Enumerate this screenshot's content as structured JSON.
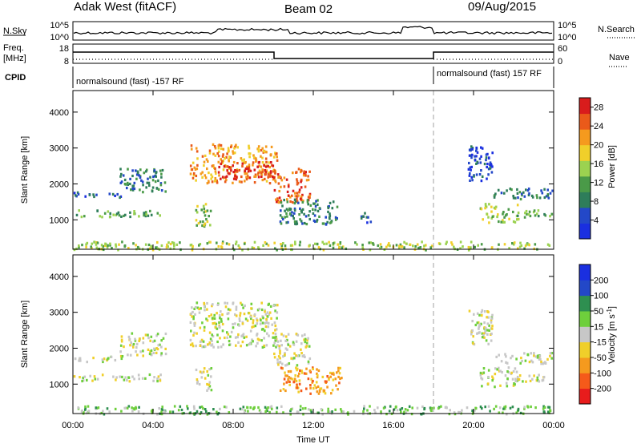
{
  "header": {
    "station": "Adak West (fitACF)",
    "beam": "Beam 02",
    "date": "09/Aug/2015"
  },
  "left_labels": {
    "nsky": "N.Sky",
    "freq_line1": "Freq.",
    "freq_line2": "[MHz]",
    "cpid": "CPID"
  },
  "right_labels": {
    "nsearch": "N.Search",
    "nave": "Nave"
  },
  "panel_ticks": {
    "noise_left": [
      "10^5",
      "10^0"
    ],
    "noise_right": [
      "10^5",
      "10^0"
    ],
    "freq_left": [
      "18",
      "8"
    ],
    "nave_right": [
      "60",
      "0"
    ]
  },
  "cpid_segments": [
    {
      "text": "normalsound (fast) -157 RF",
      "start_hour": 0
    },
    {
      "text": "normalsound (fast) 157 RF",
      "start_hour": 18
    }
  ],
  "colors": {
    "power": [
      "#1a2fe0",
      "#2348c8",
      "#2e7d5a",
      "#4a9a48",
      "#9bd250",
      "#f0cf2a",
      "#f59a1e",
      "#ea5a1a",
      "#d91c1c"
    ],
    "velocity": [
      "#e81c1c",
      "#f55a1a",
      "#f59a1e",
      "#f0cf2a",
      "#c7c7c7",
      "#6ecf3c",
      "#2e8f50",
      "#2348c8",
      "#1a2fe0"
    ],
    "ground_scatter": "#b3b3b3",
    "dashed_marker": "#a0a0a0"
  },
  "chart_data": [
    {
      "type": "heatmap",
      "name_label": "Power panel",
      "ylabel": "Slant Range [km]",
      "xlabel": "Time UT",
      "x_ticks": [
        "00:00",
        "04:00",
        "08:00",
        "12:00",
        "16:00",
        "20:00",
        "00:00"
      ],
      "xlim_hours": [
        0,
        24
      ],
      "y_ticks": [
        1000,
        2000,
        3000,
        4000
      ],
      "ylim": [
        180,
        4600
      ],
      "colorbar": {
        "label": "Power [dB]",
        "ticks": [
          4,
          8,
          12,
          16,
          20,
          24,
          28
        ],
        "range": [
          0,
          30
        ]
      },
      "mode_change_hour": 18,
      "regions": [
        {
          "t0": 0.0,
          "t1": 4.5,
          "r0": 1100,
          "r1": 1300,
          "level": 3
        },
        {
          "t0": 0.0,
          "t1": 2.5,
          "r0": 1650,
          "r1": 1800,
          "level": 1
        },
        {
          "t0": 2.3,
          "t1": 4.6,
          "r0": 1800,
          "r1": 2450,
          "level": 2
        },
        {
          "t0": 5.8,
          "t1": 10.2,
          "r0": 2050,
          "r1": 3150,
          "level": 6
        },
        {
          "t0": 7.2,
          "t1": 10.0,
          "r0": 2150,
          "r1": 2650,
          "level": 8
        },
        {
          "t0": 10.0,
          "t1": 11.8,
          "r0": 1500,
          "r1": 2450,
          "level": 7
        },
        {
          "t0": 6.1,
          "t1": 6.9,
          "r0": 850,
          "r1": 1500,
          "level": 4
        },
        {
          "t0": 10.3,
          "t1": 13.2,
          "r0": 900,
          "r1": 1600,
          "level": 2
        },
        {
          "t0": 14.3,
          "t1": 14.9,
          "r0": 950,
          "r1": 1250,
          "level": 1
        },
        {
          "t0": 19.7,
          "t1": 20.9,
          "r0": 2100,
          "r1": 3100,
          "level": 1
        },
        {
          "t0": 20.9,
          "t1": 23.9,
          "r0": 1600,
          "r1": 1900,
          "level": 2
        },
        {
          "t0": 20.3,
          "t1": 22.2,
          "r0": 950,
          "r1": 1500,
          "level": 4
        },
        {
          "t0": 22.0,
          "t1": 23.9,
          "r0": 1100,
          "r1": 1300,
          "level": 3
        },
        {
          "t0": 0.0,
          "t1": 24.0,
          "r0": 190,
          "r1": 420,
          "level": 4
        }
      ]
    },
    {
      "type": "heatmap",
      "name_label": "Velocity panel",
      "ylabel": "Slant Range [km]",
      "xlabel": "Time UT",
      "x_ticks": [
        "00:00",
        "04:00",
        "08:00",
        "12:00",
        "16:00",
        "20:00",
        "00:00"
      ],
      "xlim_hours": [
        0,
        24
      ],
      "y_ticks": [
        1000,
        2000,
        3000,
        4000
      ],
      "ylim": [
        180,
        4600
      ],
      "colorbar": {
        "label": "Velocity [m s^-1]",
        "ticks": [
          200,
          100,
          50,
          15,
          -15,
          -50,
          -100,
          -200
        ]
      },
      "mode_change_hour": 18,
      "regions": [
        {
          "t0": 0.0,
          "t1": 4.5,
          "r0": 1100,
          "r1": 1300,
          "level": 4
        },
        {
          "t0": 0.0,
          "t1": 2.5,
          "r0": 1650,
          "r1": 1800,
          "level": 4
        },
        {
          "t0": 2.3,
          "t1": 4.6,
          "r0": 1800,
          "r1": 2450,
          "level": 4
        },
        {
          "t0": 5.8,
          "t1": 10.2,
          "r0": 2050,
          "r1": 3300,
          "level": 4
        },
        {
          "t0": 10.0,
          "t1": 11.8,
          "r0": 1500,
          "r1": 2450,
          "level": 4
        },
        {
          "t0": 6.1,
          "t1": 6.9,
          "r0": 850,
          "r1": 1500,
          "level": 4
        },
        {
          "t0": 10.3,
          "t1": 13.4,
          "r0": 750,
          "r1": 1500,
          "level": 2
        },
        {
          "t0": 19.7,
          "t1": 20.9,
          "r0": 2100,
          "r1": 3100,
          "level": 4
        },
        {
          "t0": 20.9,
          "t1": 23.9,
          "r0": 1600,
          "r1": 1900,
          "level": 4
        },
        {
          "t0": 20.3,
          "t1": 22.2,
          "r0": 950,
          "r1": 1500,
          "level": 4
        },
        {
          "t0": 22.0,
          "t1": 23.9,
          "r0": 1100,
          "r1": 1300,
          "level": 4
        },
        {
          "t0": 0.0,
          "t1": 24.0,
          "r0": 190,
          "r1": 420,
          "level": 5
        }
      ]
    }
  ]
}
